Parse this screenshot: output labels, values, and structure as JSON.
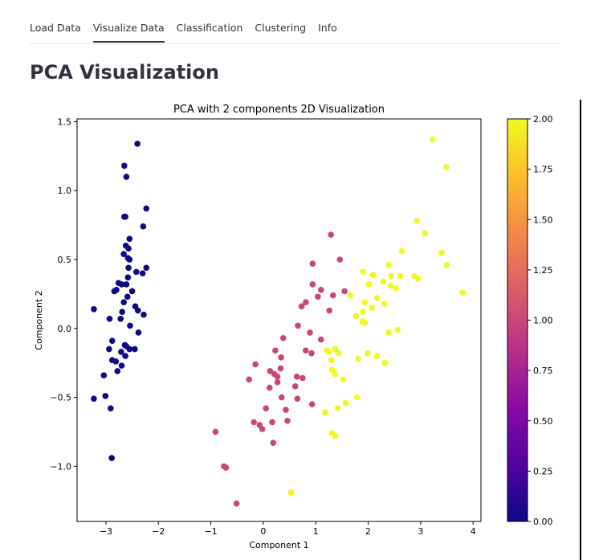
{
  "tabs": [
    {
      "label": "Load Data",
      "active": false
    },
    {
      "label": "Visualize Data",
      "active": true
    },
    {
      "label": "Classification",
      "active": false
    },
    {
      "label": "Clustering",
      "active": false
    },
    {
      "label": "Info",
      "active": false
    }
  ],
  "page": {
    "title": "PCA Visualization"
  },
  "chart_data": {
    "type": "scatter",
    "title": "PCA with 2 components 2D Visualization",
    "xlabel": "Component 1",
    "ylabel": "Component 2",
    "xlim": [
      -3.55,
      4.15
    ],
    "ylim": [
      -1.4,
      1.52
    ],
    "xticks": [
      -3,
      -2,
      -1,
      0,
      1,
      2,
      3,
      4
    ],
    "xtick_labels": [
      "−3",
      "−2",
      "−1",
      "0",
      "1",
      "2",
      "3",
      "4"
    ],
    "yticks": [
      -1.0,
      -0.5,
      0.0,
      0.5,
      1.0,
      1.5
    ],
    "ytick_labels": [
      "−1.0",
      "−0.5",
      "0.0",
      "0.5",
      "1.0",
      "1.5"
    ],
    "grid": false,
    "colormap": "plasma",
    "colormap_stops": [
      "#0d0887",
      "#5302a3",
      "#8b0aa5",
      "#b83289",
      "#db5c68",
      "#f48849",
      "#febd2a",
      "#f0f921"
    ],
    "colorbar": {
      "range": [
        0,
        2
      ],
      "ticks": [
        0,
        0.25,
        0.5,
        0.75,
        1.0,
        1.25,
        1.5,
        1.75,
        2.0
      ],
      "tick_labels": [
        "0.00",
        "0.25",
        "0.50",
        "0.75",
        "1.00",
        "1.25",
        "1.50",
        "1.75",
        "2.00"
      ]
    },
    "points": [
      {
        "x": -2.4,
        "y": 1.34,
        "c": 0
      },
      {
        "x": -2.65,
        "y": 1.18,
        "c": 0
      },
      {
        "x": -2.61,
        "y": 1.1,
        "c": 0
      },
      {
        "x": -2.23,
        "y": 0.87,
        "c": 0
      },
      {
        "x": -2.65,
        "y": 0.81,
        "c": 0
      },
      {
        "x": -2.63,
        "y": 0.81,
        "c": 0
      },
      {
        "x": -2.29,
        "y": 0.74,
        "c": 0
      },
      {
        "x": -2.55,
        "y": 0.65,
        "c": 0
      },
      {
        "x": -2.62,
        "y": 0.6,
        "c": 0
      },
      {
        "x": -2.57,
        "y": 0.58,
        "c": 0
      },
      {
        "x": -2.66,
        "y": 0.54,
        "c": 0
      },
      {
        "x": -2.58,
        "y": 0.51,
        "c": 0
      },
      {
        "x": -2.55,
        "y": 0.5,
        "c": 0
      },
      {
        "x": -2.57,
        "y": 0.44,
        "c": 0
      },
      {
        "x": -2.23,
        "y": 0.44,
        "c": 0
      },
      {
        "x": -2.42,
        "y": 0.41,
        "c": 0
      },
      {
        "x": -2.3,
        "y": 0.4,
        "c": 0
      },
      {
        "x": -2.58,
        "y": 0.37,
        "c": 0
      },
      {
        "x": -2.76,
        "y": 0.33,
        "c": 0
      },
      {
        "x": -2.7,
        "y": 0.32,
        "c": 0
      },
      {
        "x": -2.61,
        "y": 0.32,
        "c": 0
      },
      {
        "x": -2.8,
        "y": 0.28,
        "c": 0
      },
      {
        "x": -2.84,
        "y": 0.27,
        "c": 0
      },
      {
        "x": -2.5,
        "y": 0.27,
        "c": 0
      },
      {
        "x": -2.59,
        "y": 0.23,
        "c": 0
      },
      {
        "x": -2.66,
        "y": 0.19,
        "c": 0
      },
      {
        "x": -2.44,
        "y": 0.16,
        "c": 0
      },
      {
        "x": -3.23,
        "y": 0.14,
        "c": 0
      },
      {
        "x": -2.39,
        "y": 0.13,
        "c": 0
      },
      {
        "x": -2.69,
        "y": 0.12,
        "c": 0
      },
      {
        "x": -2.28,
        "y": 0.1,
        "c": 0
      },
      {
        "x": -2.72,
        "y": 0.07,
        "c": 0
      },
      {
        "x": -2.93,
        "y": 0.07,
        "c": 0
      },
      {
        "x": -2.54,
        "y": 0.02,
        "c": 0
      },
      {
        "x": -2.38,
        "y": -0.03,
        "c": 0
      },
      {
        "x": -2.88,
        "y": -0.09,
        "c": 0
      },
      {
        "x": -2.64,
        "y": -0.12,
        "c": 0
      },
      {
        "x": -2.61,
        "y": -0.13,
        "c": 0
      },
      {
        "x": -2.55,
        "y": -0.15,
        "c": 0
      },
      {
        "x": -2.94,
        "y": -0.15,
        "c": 0
      },
      {
        "x": -2.45,
        "y": -0.15,
        "c": 0
      },
      {
        "x": -2.71,
        "y": -0.17,
        "c": 0
      },
      {
        "x": -2.63,
        "y": -0.2,
        "c": 0
      },
      {
        "x": -2.88,
        "y": -0.23,
        "c": 0
      },
      {
        "x": -2.81,
        "y": -0.24,
        "c": 0
      },
      {
        "x": -2.7,
        "y": -0.27,
        "c": 0
      },
      {
        "x": -2.78,
        "y": -0.31,
        "c": 0
      },
      {
        "x": -3.04,
        "y": -0.34,
        "c": 0
      },
      {
        "x": -3.01,
        "y": -0.49,
        "c": 0
      },
      {
        "x": -3.23,
        "y": -0.51,
        "c": 0
      },
      {
        "x": -2.91,
        "y": -0.58,
        "c": 0
      },
      {
        "x": -2.89,
        "y": -0.94,
        "c": 0
      },
      {
        "x": 1.29,
        "y": 0.68,
        "c": 1
      },
      {
        "x": 0.94,
        "y": 0.47,
        "c": 1
      },
      {
        "x": 1.46,
        "y": 0.5,
        "c": 1
      },
      {
        "x": 0.94,
        "y": 0.32,
        "c": 1
      },
      {
        "x": 1.1,
        "y": 0.28,
        "c": 1
      },
      {
        "x": 1.55,
        "y": 0.27,
        "c": 1
      },
      {
        "x": 1.33,
        "y": 0.24,
        "c": 1
      },
      {
        "x": 1.04,
        "y": 0.23,
        "c": 1
      },
      {
        "x": 0.81,
        "y": 0.19,
        "c": 1
      },
      {
        "x": 0.73,
        "y": 0.16,
        "c": 1
      },
      {
        "x": 1.26,
        "y": 0.13,
        "c": 1
      },
      {
        "x": 0.66,
        "y": 0.02,
        "c": 1
      },
      {
        "x": 0.89,
        "y": -0.03,
        "c": 1
      },
      {
        "x": 0.38,
        "y": -0.07,
        "c": 1
      },
      {
        "x": 1.1,
        "y": -0.08,
        "c": 1
      },
      {
        "x": 0.81,
        "y": -0.16,
        "c": 1
      },
      {
        "x": 0.23,
        "y": -0.16,
        "c": 1
      },
      {
        "x": 0.92,
        "y": -0.18,
        "c": 1
      },
      {
        "x": 0.34,
        "y": -0.21,
        "c": 1
      },
      {
        "x": -0.15,
        "y": -0.26,
        "c": 1
      },
      {
        "x": 0.33,
        "y": -0.29,
        "c": 1
      },
      {
        "x": 0.13,
        "y": -0.31,
        "c": 1
      },
      {
        "x": 0.21,
        "y": -0.33,
        "c": 1
      },
      {
        "x": 0.64,
        "y": -0.35,
        "c": 1
      },
      {
        "x": 0.27,
        "y": -0.35,
        "c": 1
      },
      {
        "x": 0.75,
        "y": -0.36,
        "c": 1
      },
      {
        "x": -0.27,
        "y": -0.37,
        "c": 1
      },
      {
        "x": 0.27,
        "y": -0.39,
        "c": 1
      },
      {
        "x": 0.61,
        "y": -0.42,
        "c": 1
      },
      {
        "x": 0.12,
        "y": -0.43,
        "c": 1
      },
      {
        "x": 0.35,
        "y": -0.5,
        "c": 1
      },
      {
        "x": 0.65,
        "y": -0.51,
        "c": 1
      },
      {
        "x": 0.93,
        "y": -0.55,
        "c": 1
      },
      {
        "x": 0.05,
        "y": -0.58,
        "c": 1
      },
      {
        "x": 0.43,
        "y": -0.59,
        "c": 1
      },
      {
        "x": -0.18,
        "y": -0.68,
        "c": 1
      },
      {
        "x": 0.46,
        "y": -0.67,
        "c": 1
      },
      {
        "x": 0.17,
        "y": -0.68,
        "c": 1
      },
      {
        "x": -0.07,
        "y": -0.7,
        "c": 1
      },
      {
        "x": -0.02,
        "y": -0.73,
        "c": 1
      },
      {
        "x": -0.91,
        "y": -0.75,
        "c": 1
      },
      {
        "x": 0.19,
        "y": -0.83,
        "c": 1
      },
      {
        "x": -0.75,
        "y": -1.0,
        "c": 1
      },
      {
        "x": -0.71,
        "y": -1.01,
        "c": 1
      },
      {
        "x": -0.51,
        "y": -1.27,
        "c": 1
      },
      {
        "x": 3.23,
        "y": 1.37,
        "c": 2
      },
      {
        "x": 3.49,
        "y": 1.17,
        "c": 2
      },
      {
        "x": 2.93,
        "y": 0.78,
        "c": 2
      },
      {
        "x": 3.08,
        "y": 0.69,
        "c": 2
      },
      {
        "x": 2.64,
        "y": 0.56,
        "c": 2
      },
      {
        "x": 3.4,
        "y": 0.55,
        "c": 2
      },
      {
        "x": 2.39,
        "y": 0.46,
        "c": 2
      },
      {
        "x": 3.5,
        "y": 0.46,
        "c": 2
      },
      {
        "x": 1.9,
        "y": 0.41,
        "c": 2
      },
      {
        "x": 2.09,
        "y": 0.39,
        "c": 2
      },
      {
        "x": 2.61,
        "y": 0.38,
        "c": 2
      },
      {
        "x": 2.44,
        "y": 0.38,
        "c": 2
      },
      {
        "x": 2.88,
        "y": 0.38,
        "c": 2
      },
      {
        "x": 2.95,
        "y": 0.36,
        "c": 2
      },
      {
        "x": 2.29,
        "y": 0.34,
        "c": 2
      },
      {
        "x": 2.01,
        "y": 0.32,
        "c": 2
      },
      {
        "x": 2.43,
        "y": 0.31,
        "c": 2
      },
      {
        "x": 2.53,
        "y": 0.29,
        "c": 2
      },
      {
        "x": 3.8,
        "y": 0.26,
        "c": 2
      },
      {
        "x": 1.66,
        "y": 0.24,
        "c": 2
      },
      {
        "x": 2.17,
        "y": 0.22,
        "c": 2
      },
      {
        "x": 1.94,
        "y": 0.19,
        "c": 2
      },
      {
        "x": 2.31,
        "y": 0.18,
        "c": 2
      },
      {
        "x": 2.07,
        "y": 0.15,
        "c": 2
      },
      {
        "x": 1.9,
        "y": 0.12,
        "c": 2
      },
      {
        "x": 1.77,
        "y": 0.09,
        "c": 2
      },
      {
        "x": 1.89,
        "y": 0.05,
        "c": 2
      },
      {
        "x": 1.94,
        "y": 0.04,
        "c": 2
      },
      {
        "x": 2.56,
        "y": -0.01,
        "c": 2
      },
      {
        "x": 2.39,
        "y": -0.03,
        "c": 2
      },
      {
        "x": 1.37,
        "y": -0.15,
        "c": 2
      },
      {
        "x": 1.21,
        "y": -0.16,
        "c": 2
      },
      {
        "x": 1.25,
        "y": -0.17,
        "c": 2
      },
      {
        "x": 1.44,
        "y": -0.18,
        "c": 2
      },
      {
        "x": 1.99,
        "y": -0.18,
        "c": 2
      },
      {
        "x": 2.17,
        "y": -0.2,
        "c": 2
      },
      {
        "x": 1.81,
        "y": -0.22,
        "c": 2
      },
      {
        "x": 1.3,
        "y": -0.23,
        "c": 2
      },
      {
        "x": 2.32,
        "y": -0.25,
        "c": 2
      },
      {
        "x": 1.31,
        "y": -0.3,
        "c": 2
      },
      {
        "x": 1.37,
        "y": -0.33,
        "c": 2
      },
      {
        "x": 1.52,
        "y": -0.37,
        "c": 2
      },
      {
        "x": 1.79,
        "y": -0.5,
        "c": 2
      },
      {
        "x": 1.57,
        "y": -0.54,
        "c": 2
      },
      {
        "x": 1.42,
        "y": -0.58,
        "c": 2
      },
      {
        "x": 1.18,
        "y": -0.61,
        "c": 2
      },
      {
        "x": 1.31,
        "y": -0.76,
        "c": 2
      },
      {
        "x": 1.37,
        "y": -0.78,
        "c": 2
      },
      {
        "x": 0.53,
        "y": -1.19,
        "c": 2
      }
    ]
  }
}
